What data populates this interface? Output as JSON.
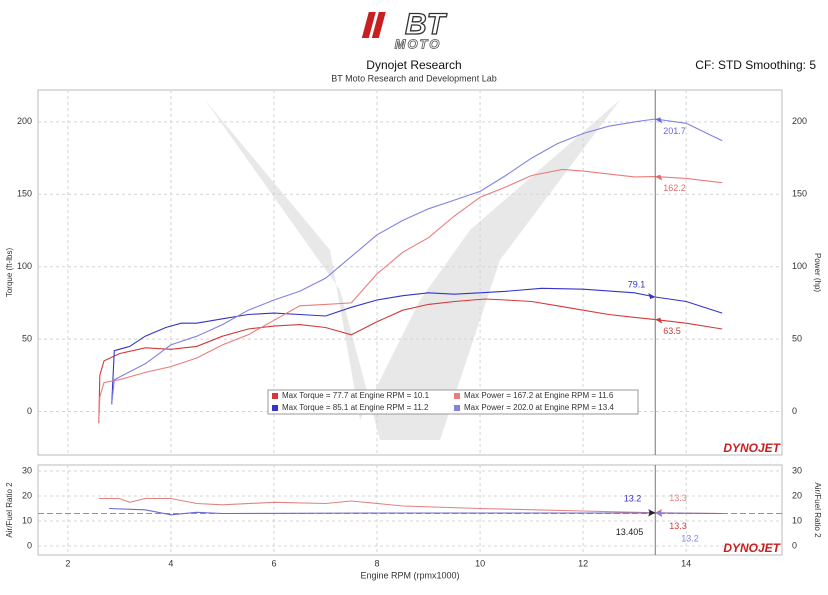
{
  "header": {
    "logo": "BT",
    "logo_sub": "MOTO",
    "title": "Dynojet Research",
    "subtitle": "BT Moto Research and Development Lab",
    "settings": "CF: STD Smoothing: 5",
    "brand": "DYNOJET"
  },
  "chart_data": [
    {
      "type": "line",
      "ylabel": "Torque (ft-lbs)",
      "y2label": "Power (hp)",
      "xlim": [
        1.42,
        15.86
      ],
      "ylim": [
        -30,
        222
      ],
      "yticks": [
        0,
        50,
        100,
        150,
        200
      ],
      "y2lim": [
        -30,
        222
      ],
      "y2ticks": [
        0,
        50,
        100,
        150,
        200
      ],
      "grid": true,
      "cursor_x": 13.4,
      "series": [
        {
          "name": "Max Torque = 77.7 at Engine RPM = 10.1",
          "color": "#d23a3a",
          "x": [
            2.6,
            2.62,
            2.7,
            3.0,
            3.5,
            4.0,
            4.5,
            5.0,
            5.5,
            6.0,
            6.5,
            7.0,
            7.5,
            8.0,
            8.5,
            9.0,
            9.5,
            10.1,
            10.5,
            11.0,
            11.5,
            12.0,
            12.5,
            13.0,
            13.4,
            14.0,
            14.7
          ],
          "values": [
            -8,
            25,
            35,
            40,
            44,
            43,
            45,
            52,
            57,
            59,
            60,
            58,
            53,
            62,
            70,
            74,
            76,
            77.7,
            77,
            76,
            73,
            70,
            67,
            65,
            63.5,
            61,
            57
          ]
        },
        {
          "name": "Max Torque = 85.1 at Engine RPM = 11.2",
          "color": "#3434c8",
          "x": [
            2.85,
            2.9,
            3.2,
            3.5,
            3.9,
            4.2,
            4.5,
            5.0,
            5.5,
            6.0,
            6.5,
            7.0,
            7.5,
            8.0,
            8.5,
            9.0,
            9.5,
            10.0,
            10.5,
            11.2,
            12.0,
            13.0,
            13.4,
            14.0,
            14.7
          ],
          "values": [
            5,
            42,
            45,
            52,
            58,
            61,
            61,
            64,
            67,
            68,
            67,
            66,
            72,
            77,
            80,
            82,
            81,
            82,
            83,
            85.1,
            84.5,
            82,
            79.1,
            76,
            68
          ]
        },
        {
          "name": "Max Power = 167.2 at Engine RPM = 11.6",
          "color": "#ea7c7c",
          "axis": "y2",
          "x": [
            2.6,
            2.62,
            2.7,
            3.0,
            3.5,
            4.0,
            4.5,
            5.0,
            5.5,
            6.0,
            6.5,
            7.0,
            7.5,
            8.0,
            8.5,
            9.0,
            9.5,
            10.0,
            10.5,
            11.0,
            11.6,
            12.0,
            13.0,
            13.4,
            14.0,
            14.7
          ],
          "values": [
            -8,
            10,
            20,
            22,
            27,
            31,
            37,
            46,
            53,
            63,
            73,
            74,
            75,
            95,
            110,
            120,
            135,
            148,
            155,
            163,
            167.2,
            166,
            162,
            162.2,
            161,
            158
          ]
        },
        {
          "name": "Max Power = 202.0 at Engine RPM = 13.4",
          "color": "#8282e2",
          "axis": "y2",
          "x": [
            2.85,
            2.9,
            3.5,
            4.0,
            4.5,
            5.0,
            5.5,
            6.0,
            6.5,
            7.0,
            7.5,
            8.0,
            8.5,
            9.0,
            9.5,
            10.0,
            10.5,
            11.0,
            11.5,
            12.0,
            12.5,
            13.0,
            13.4,
            14.0,
            14.7
          ],
          "values": [
            5,
            22,
            33,
            46,
            52,
            60,
            70,
            77,
            83,
            92,
            107,
            122,
            132,
            140,
            146,
            152,
            163,
            175,
            185,
            192,
            197,
            200,
            202,
            199,
            187
          ]
        }
      ],
      "annotations": [
        {
          "x": 13.4,
          "value": 201.7,
          "color": "#6a6ad0"
        },
        {
          "x": 13.4,
          "value": 162.2,
          "color": "#e06a6a"
        },
        {
          "x": 13.4,
          "value": 79.1,
          "color": "#3434c8"
        },
        {
          "x": 13.4,
          "value": 63.5,
          "color": "#d23a3a"
        }
      ]
    },
    {
      "type": "line",
      "ylabel": "Air/Fuel Ratio 2",
      "y2label": "Air/Fuel Ratio 2",
      "xlabel": "Engine RPM (rpmx1000)",
      "xlim": [
        1.42,
        15.86
      ],
      "ylim": [
        -3.6,
        32.4
      ],
      "yticks": [
        0,
        10,
        20,
        30
      ],
      "y2lim": [
        -3.6,
        32.4
      ],
      "y2ticks": [
        0,
        10,
        20,
        30
      ],
      "xticks": [
        2,
        4,
        6,
        8,
        10,
        12,
        14
      ],
      "grid": true,
      "cursor_x": 13.4,
      "reference_line": 13,
      "series": [
        {
          "color": "#e48282",
          "x": [
            2.6,
            3.0,
            3.2,
            3.5,
            4.0,
            4.5,
            5.0,
            6.0,
            7.0,
            7.5,
            8.5,
            10.0,
            12.0,
            13.4,
            14.7
          ],
          "values": [
            19,
            19,
            17.5,
            19,
            19,
            17,
            16.5,
            17.5,
            17,
            18,
            16,
            15,
            14,
            13.3,
            13
          ]
        },
        {
          "color": "#6c6cd0",
          "x": [
            2.8,
            3.5,
            4.0,
            4.5,
            5.0,
            8.0,
            10.0,
            12.0,
            13.4,
            14.7
          ],
          "values": [
            15,
            14.5,
            12.5,
            13.5,
            13,
            13.2,
            13.2,
            13.2,
            13.2,
            13
          ]
        }
      ],
      "annotations": [
        {
          "x": 13.4,
          "value": 13.2,
          "color": "#3434c8"
        },
        {
          "x": 13.4,
          "value": 13.3,
          "color": "#e48282"
        },
        {
          "x": 13.4,
          "value": 13.3,
          "color": "#d23a3a"
        },
        {
          "x": 13.4,
          "value": 13.2,
          "color": "#8282e2"
        },
        {
          "x": 13.4,
          "value": 13.405,
          "color": "#222222"
        }
      ]
    }
  ]
}
